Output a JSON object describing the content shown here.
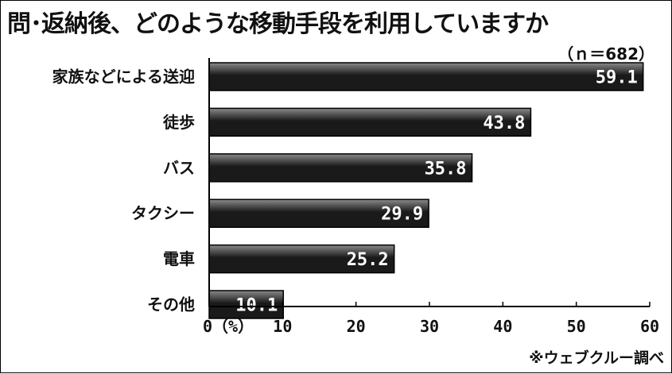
{
  "chart_data": {
    "type": "bar",
    "orientation": "horizontal",
    "title": "問･返納後、どのような移動手段を利用していますか",
    "sample_note": "（ｎ＝682）",
    "categories": [
      "家族などによる送迎",
      "徒歩",
      "バス",
      "タクシー",
      "電車",
      "その他"
    ],
    "values": [
      59.1,
      43.8,
      35.8,
      29.9,
      25.2,
      10.1
    ],
    "value_labels": [
      "59.1",
      "43.8",
      "35.8",
      "29.9",
      "25.2",
      "10.1"
    ],
    "xlim": [
      0,
      60
    ],
    "x_ticks": [
      0,
      10,
      20,
      30,
      40,
      50,
      60
    ],
    "x_tick_labels": [
      "0（%）",
      "10",
      "20",
      "30",
      "40",
      "50",
      "60"
    ],
    "source": "※ウェブクルー調べ",
    "grid": false,
    "colors": {
      "bar_dark": "#1a1a1a",
      "bar_light": "#8a8a8a",
      "bar_border": "#000000",
      "text": "#111111"
    }
  }
}
